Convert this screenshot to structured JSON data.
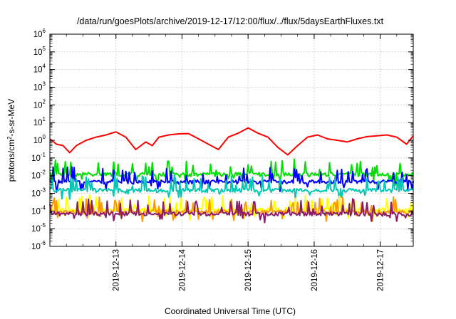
{
  "chart_data": {
    "type": "line",
    "title": "/data/run/goesPlots/archive/2019-12-17/12:00/flux/../flux/5daysEarthFluxes.txt",
    "xlabel": "Coordinated Universal Time (UTC)",
    "ylabel": "protons/cm²-s-sr-MeV",
    "yscale": "log",
    "ylim": [
      1e-06,
      1000000.0
    ],
    "x_tick_labels": [
      "2019-12-13",
      "2019-12-14",
      "2019-12-15",
      "2019-12-16",
      "2019-12-17"
    ],
    "y_ticks": [
      {
        "base": "10",
        "exp": "-6"
      },
      {
        "base": "10",
        "exp": "-5"
      },
      {
        "base": "10",
        "exp": "-4"
      },
      {
        "base": "10",
        "exp": "-3"
      },
      {
        "base": "10",
        "exp": "-2"
      },
      {
        "base": "10",
        "exp": "-1"
      },
      {
        "base": "10",
        "exp": "0"
      },
      {
        "base": "10",
        "exp": "1"
      },
      {
        "base": "10",
        "exp": "2"
      },
      {
        "base": "10",
        "exp": "3"
      },
      {
        "base": "10",
        "exp": "4"
      },
      {
        "base": "10",
        "exp": "5"
      },
      {
        "base": "10",
        "exp": "6"
      }
    ],
    "grid": true,
    "x_start_day": "2019-12-12",
    "series": [
      {
        "color": "#ff0000",
        "x_day": [
          0.0,
          0.1,
          0.2,
          0.3,
          0.4,
          0.55,
          0.7,
          0.85,
          1.0,
          1.15,
          1.3,
          1.45,
          1.55,
          1.65,
          1.8,
          1.95,
          2.1,
          2.25,
          2.4,
          2.55,
          2.7,
          2.85,
          3.0,
          3.15,
          3.3,
          3.45,
          3.6,
          3.75,
          3.9,
          4.05,
          4.2,
          4.35,
          4.5,
          4.65,
          4.8,
          4.95,
          5.1,
          5.25,
          5.4,
          5.5
        ],
        "y": [
          1.2,
          0.6,
          0.5,
          0.2,
          0.5,
          1.0,
          1.5,
          2.0,
          3.0,
          1.5,
          0.3,
          0.8,
          0.5,
          1.5,
          2.0,
          2.3,
          2.4,
          1.2,
          0.6,
          0.3,
          1.5,
          2.5,
          5.0,
          2.5,
          1.5,
          0.4,
          0.15,
          0.5,
          1.5,
          2.0,
          1.2,
          1.0,
          0.8,
          1.2,
          1.6,
          1.8,
          2.0,
          1.5,
          0.6,
          1.8
        ]
      },
      {
        "color": "#00e000",
        "base": 0.012,
        "x_range_day": [
          0.0,
          5.5
        ]
      },
      {
        "color": "#0000ff",
        "base": 0.0045,
        "x_range_day": [
          0.0,
          5.5
        ]
      },
      {
        "color": "#00c8b4",
        "base": 0.0015,
        "x_range_day": [
          0.0,
          5.5
        ]
      },
      {
        "color": "#ffff00",
        "base": 0.00012,
        "x_range_day": [
          0.0,
          5.5
        ]
      },
      {
        "color": "#ff9900",
        "base": 9e-05,
        "x_range_day": [
          0.0,
          5.5
        ]
      },
      {
        "color": "#8b1a6b",
        "base": 7e-05,
        "x_range_day": [
          0.0,
          5.5
        ]
      }
    ]
  }
}
